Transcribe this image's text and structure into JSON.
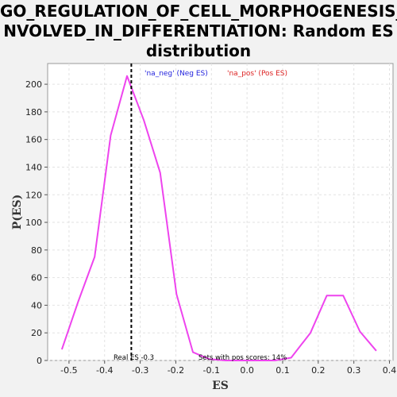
{
  "chart_data": {
    "type": "line",
    "title": "GO_REGULATION_OF_CELL_MORPHOGENESIS_I\nNVOLVED_IN_DIFFERENTIATION: Random ES\ndistribution",
    "xlabel": "ES",
    "ylabel": "P(ES)",
    "xlim": [
      -0.56,
      0.41
    ],
    "ylim": [
      0,
      215
    ],
    "x_ticks": [
      -0.5,
      -0.4,
      -0.3,
      -0.2,
      -0.1,
      0.0,
      0.1,
      0.2,
      0.3,
      0.4
    ],
    "x_tick_labels": [
      "-0.5",
      "-0.4",
      "-0.3",
      "-0.2",
      "-0.1",
      "0.0",
      "0.1",
      "0.2",
      "0.3",
      "0.4"
    ],
    "y_ticks": [
      0,
      20,
      40,
      60,
      80,
      100,
      120,
      140,
      160,
      180,
      200
    ],
    "y_tick_labels": [
      "0",
      "20",
      "40",
      "60",
      "80",
      "100",
      "120",
      "140",
      "160",
      "180",
      "200"
    ],
    "grid": true,
    "series": [
      {
        "color": "#ee44ee",
        "x": [
          -0.52,
          -0.475,
          -0.428,
          -0.383,
          -0.337,
          -0.29,
          -0.244,
          -0.198,
          -0.152,
          -0.106,
          -0.06,
          -0.014,
          0.032,
          0.078,
          0.124,
          0.178,
          0.224,
          0.27,
          0.317,
          0.363
        ],
        "y": [
          8,
          42,
          75,
          163,
          206,
          174,
          136,
          48,
          6,
          1,
          0,
          0,
          0,
          0,
          2,
          20,
          47,
          47,
          21,
          7
        ]
      }
    ],
    "legend": [
      {
        "label": "'na_neg' (Neg ES)",
        "color": "#2222dd"
      },
      {
        "label": "'na_pos' (Pos ES)",
        "color": "#dd2222"
      }
    ],
    "real_es": -0.325,
    "annotations": {
      "real_es_label": "Real ES -0.3",
      "pos_scores_label": "Sets with pos scores: 14%"
    }
  }
}
